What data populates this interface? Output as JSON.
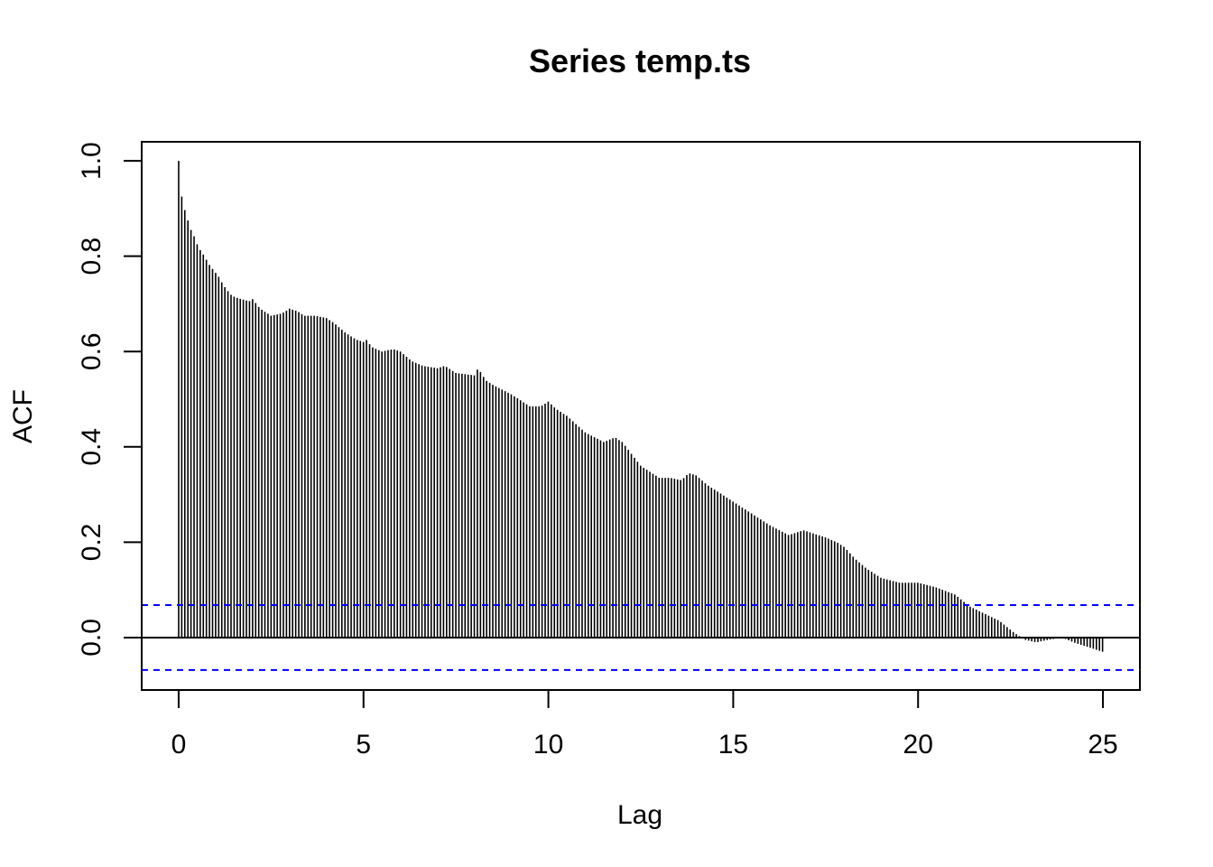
{
  "chart_data": {
    "type": "bar",
    "title": "Series  temp.ts",
    "xlabel": "Lag",
    "ylabel": "ACF",
    "xlim": [
      -1,
      26
    ],
    "ylim": [
      -0.11,
      1.04
    ],
    "x_ticks": [
      0,
      5,
      10,
      15,
      20,
      25
    ],
    "x_tick_labels": [
      "0",
      "5",
      "10",
      "15",
      "20",
      "25"
    ],
    "y_ticks": [
      0.0,
      0.2,
      0.4,
      0.6,
      0.8,
      1.0
    ],
    "y_tick_labels": [
      "0.0",
      "0.2",
      "0.4",
      "0.6",
      "0.8",
      "1.0"
    ],
    "grid": false,
    "confidence_band": 0.068,
    "colors": {
      "bars": "#000000",
      "band": "#0000ff",
      "zero_line": "#000000"
    },
    "lag_step": 0.0833,
    "acf_points": [
      [
        0,
        1.0
      ],
      [
        0.1,
        0.91
      ],
      [
        0.2,
        0.89
      ],
      [
        0.3,
        0.86
      ],
      [
        0.4,
        0.845
      ],
      [
        0.5,
        0.825
      ],
      [
        0.6,
        0.81
      ],
      [
        0.7,
        0.8
      ],
      [
        0.8,
        0.785
      ],
      [
        0.9,
        0.775
      ],
      [
        1.0,
        0.765
      ],
      [
        1.1,
        0.755
      ],
      [
        1.2,
        0.74
      ],
      [
        1.3,
        0.73
      ],
      [
        1.4,
        0.72
      ],
      [
        1.5,
        0.715
      ],
      [
        1.6,
        0.712
      ],
      [
        1.7,
        0.71
      ],
      [
        1.8,
        0.708
      ],
      [
        1.9,
        0.705
      ],
      [
        2.0,
        0.71
      ],
      [
        2.2,
        0.69
      ],
      [
        2.5,
        0.675
      ],
      [
        2.8,
        0.68
      ],
      [
        3.0,
        0.69
      ],
      [
        3.2,
        0.685
      ],
      [
        3.4,
        0.675
      ],
      [
        3.7,
        0.675
      ],
      [
        4.0,
        0.67
      ],
      [
        4.2,
        0.66
      ],
      [
        4.5,
        0.64
      ],
      [
        4.8,
        0.625
      ],
      [
        5.0,
        0.62
      ],
      [
        5.1,
        0.625
      ],
      [
        5.2,
        0.61
      ],
      [
        5.5,
        0.6
      ],
      [
        5.8,
        0.605
      ],
      [
        6.0,
        0.6
      ],
      [
        6.3,
        0.58
      ],
      [
        6.6,
        0.57
      ],
      [
        7.0,
        0.565
      ],
      [
        7.2,
        0.57
      ],
      [
        7.5,
        0.555
      ],
      [
        8.0,
        0.55
      ],
      [
        8.1,
        0.565
      ],
      [
        8.3,
        0.54
      ],
      [
        8.5,
        0.53
      ],
      [
        9.0,
        0.51
      ],
      [
        9.5,
        0.485
      ],
      [
        9.8,
        0.485
      ],
      [
        10.0,
        0.495
      ],
      [
        10.2,
        0.48
      ],
      [
        10.5,
        0.465
      ],
      [
        11.0,
        0.43
      ],
      [
        11.5,
        0.41
      ],
      [
        11.8,
        0.42
      ],
      [
        12.0,
        0.41
      ],
      [
        12.3,
        0.38
      ],
      [
        12.5,
        0.36
      ],
      [
        13.0,
        0.335
      ],
      [
        13.3,
        0.335
      ],
      [
        13.6,
        0.33
      ],
      [
        13.8,
        0.345
      ],
      [
        14.0,
        0.34
      ],
      [
        14.3,
        0.32
      ],
      [
        14.6,
        0.305
      ],
      [
        15.0,
        0.285
      ],
      [
        15.5,
        0.26
      ],
      [
        16.0,
        0.235
      ],
      [
        16.5,
        0.215
      ],
      [
        16.9,
        0.225
      ],
      [
        17.5,
        0.21
      ],
      [
        17.8,
        0.2
      ],
      [
        18.0,
        0.19
      ],
      [
        18.3,
        0.165
      ],
      [
        18.6,
        0.145
      ],
      [
        19.0,
        0.125
      ],
      [
        19.5,
        0.115
      ],
      [
        20.0,
        0.115
      ],
      [
        20.5,
        0.105
      ],
      [
        21.0,
        0.09
      ],
      [
        21.4,
        0.065
      ],
      [
        21.8,
        0.05
      ],
      [
        22.2,
        0.035
      ],
      [
        22.6,
        0.01
      ],
      [
        22.9,
        -0.005
      ],
      [
        23.2,
        -0.01
      ],
      [
        23.5,
        -0.005
      ],
      [
        23.9,
        0.0
      ],
      [
        24.2,
        -0.01
      ],
      [
        24.6,
        -0.02
      ],
      [
        25.0,
        -0.03
      ]
    ]
  }
}
